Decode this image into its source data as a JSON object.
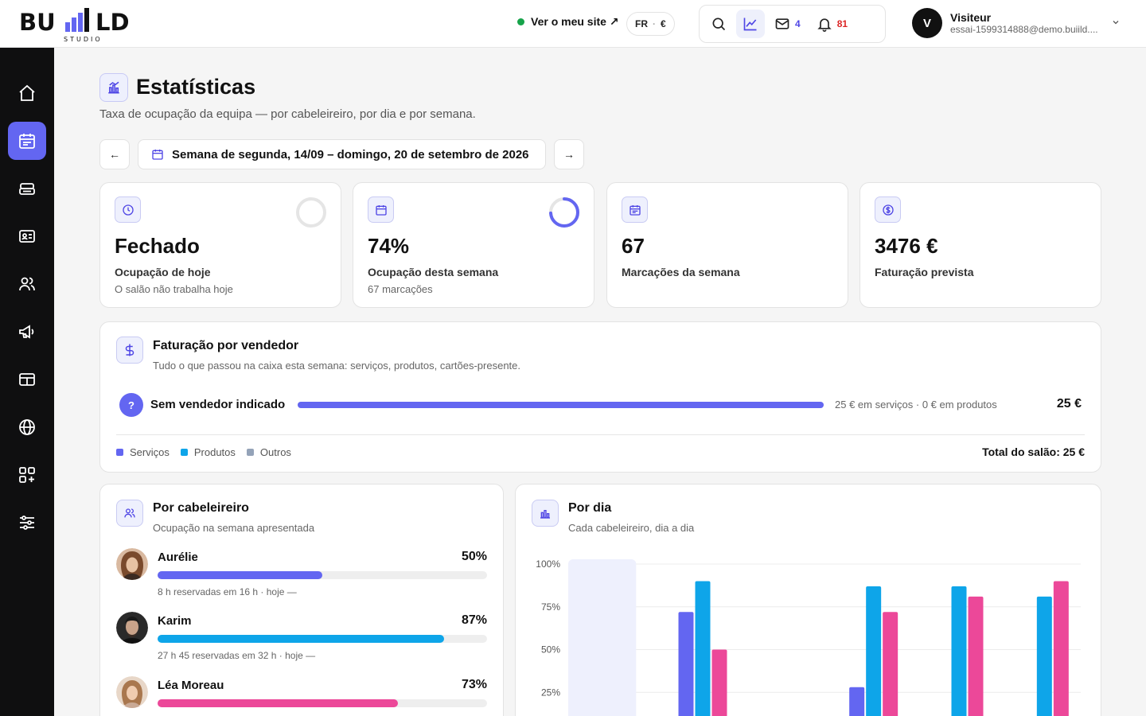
{
  "header": {
    "logo_text": "BU LD",
    "logo_sub": "STUDIO",
    "site_link": "Ver o meu site ↗",
    "lang": "FR",
    "lang_sep": "·",
    "currency": "€",
    "mail_count": "4",
    "notif_count": "81",
    "user_initial": "V",
    "user_name": "Visiteur",
    "user_email": "essai-1599314888@demo.buiild...."
  },
  "sidebar": {
    "items": [
      {
        "name": "home-icon"
      },
      {
        "name": "calendar-icon",
        "active": true
      },
      {
        "name": "register-icon"
      },
      {
        "name": "contact-card-icon"
      },
      {
        "name": "users-icon"
      },
      {
        "name": "megaphone-icon"
      },
      {
        "name": "card-icon"
      },
      {
        "name": "globe-icon"
      },
      {
        "name": "apps-icon"
      },
      {
        "name": "sliders-icon"
      }
    ]
  },
  "page": {
    "title": "Estatísticas",
    "subtitle": "Taxa de ocupação da equipa — por cabeleireiro, por dia e por semana.",
    "prev": "←",
    "next": "→",
    "week_label": "Semana de segunda, 14/09 – domingo, 20 de setembro de 2026"
  },
  "stats": [
    {
      "value": "Fechado",
      "label": "Ocupação de hoje",
      "sub": "O salão não trabalha hoje",
      "ring": 0
    },
    {
      "value": "74%",
      "label": "Ocupação desta semana",
      "sub": "67 marcações",
      "ring": 0.74
    },
    {
      "value": "67",
      "label": "Marcações da semana",
      "sub": ""
    },
    {
      "value": "3476 €",
      "label": "Faturação prevista",
      "sub": ""
    }
  ],
  "revenue": {
    "title": "Faturação por vendedor",
    "subtitle": "Tudo o que passou na caixa esta semana: serviços, produtos, cartões-presente.",
    "row": {
      "badge": "?",
      "name": "Sem vendedor indicado",
      "detail": "25 € em serviços · 0 € em produtos",
      "amount": "25 €",
      "fraction": 1
    },
    "legend": [
      {
        "label": "Serviços",
        "color": "#6366f1"
      },
      {
        "label": "Produtos",
        "color": "#0ea5e9"
      },
      {
        "label": "Outros",
        "color": "#94a3b8"
      }
    ],
    "total": "Total do salão: 25 €"
  },
  "by_stylist": {
    "title": "Por cabeleireiro",
    "subtitle": "Ocupação na semana apresentada",
    "items": [
      {
        "name": "Aurélie",
        "pct": "50%",
        "value": 0.5,
        "detail": "8 h reservadas em 16 h · hoje —",
        "color": "#6366f1"
      },
      {
        "name": "Karim",
        "pct": "87%",
        "value": 0.87,
        "detail": "27 h 45 reservadas em 32 h · hoje —",
        "color": "#0ea5e9"
      },
      {
        "name": "Léa Moreau",
        "pct": "73%",
        "value": 0.73,
        "detail": "",
        "color": "#ec4899"
      }
    ]
  },
  "by_day": {
    "title": "Por dia",
    "subtitle": "Cada cabeleireiro, dia a dia"
  },
  "chart_data": {
    "type": "bar",
    "yticks": [
      "100%",
      "75%",
      "50%",
      "25%"
    ],
    "ylim": [
      0,
      100
    ],
    "series_colors": [
      "#6366f1",
      "#0ea5e9",
      "#ec4899"
    ],
    "groups": [
      {
        "values": [
          0,
          0,
          0
        ],
        "highlight": true
      },
      {
        "values": [
          72,
          90,
          50
        ]
      },
      {
        "values": [
          0,
          0,
          0
        ]
      },
      {
        "values": [
          28,
          87,
          72
        ]
      },
      {
        "values": [
          0,
          87,
          81
        ]
      },
      {
        "values": [
          0,
          81,
          90
        ]
      }
    ]
  }
}
